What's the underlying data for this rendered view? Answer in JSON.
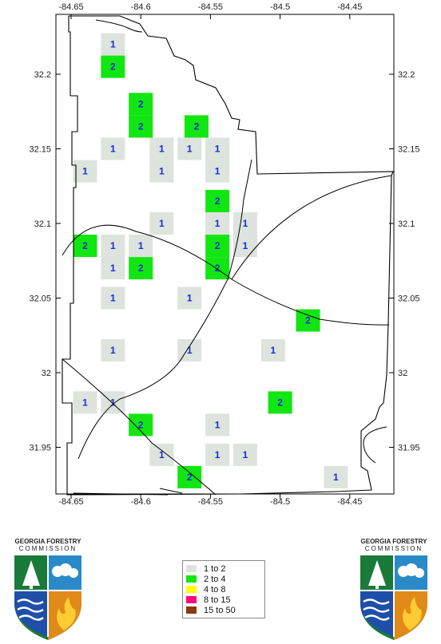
{
  "map": {
    "x_ticks": [
      "-84.65",
      "-84.6",
      "-84.55",
      "-84.5",
      "-84.45"
    ],
    "y_ticks": [
      "32.2",
      "32.15",
      "32.1",
      "32.05",
      "32",
      "31.95"
    ],
    "cell_colors": {
      "1": "#dde3dd",
      "2": "#11e611"
    },
    "cells": [
      {
        "lon": -84.62,
        "lat": 32.22,
        "v": 1
      },
      {
        "lon": -84.62,
        "lat": 32.205,
        "v": 2
      },
      {
        "lon": -84.6,
        "lat": 32.18,
        "v": 2
      },
      {
        "lon": -84.6,
        "lat": 32.165,
        "v": 2
      },
      {
        "lon": -84.56,
        "lat": 32.165,
        "v": 2
      },
      {
        "lon": -84.62,
        "lat": 32.15,
        "v": 1
      },
      {
        "lon": -84.585,
        "lat": 32.15,
        "v": 1
      },
      {
        "lon": -84.565,
        "lat": 32.15,
        "v": 1
      },
      {
        "lon": -84.545,
        "lat": 32.15,
        "v": 1
      },
      {
        "lon": -84.64,
        "lat": 32.135,
        "v": 1
      },
      {
        "lon": -84.585,
        "lat": 32.135,
        "v": 1
      },
      {
        "lon": -84.545,
        "lat": 32.135,
        "v": 1
      },
      {
        "lon": -84.545,
        "lat": 32.115,
        "v": 2
      },
      {
        "lon": -84.585,
        "lat": 32.1,
        "v": 1
      },
      {
        "lon": -84.545,
        "lat": 32.1,
        "v": 1
      },
      {
        "lon": -84.525,
        "lat": 32.1,
        "v": 1
      },
      {
        "lon": -84.64,
        "lat": 32.085,
        "v": 2
      },
      {
        "lon": -84.62,
        "lat": 32.085,
        "v": 1
      },
      {
        "lon": -84.6,
        "lat": 32.085,
        "v": 1
      },
      {
        "lon": -84.545,
        "lat": 32.085,
        "v": 2
      },
      {
        "lon": -84.525,
        "lat": 32.085,
        "v": 1
      },
      {
        "lon": -84.62,
        "lat": 32.07,
        "v": 1
      },
      {
        "lon": -84.6,
        "lat": 32.07,
        "v": 2
      },
      {
        "lon": -84.545,
        "lat": 32.07,
        "v": 2
      },
      {
        "lon": -84.62,
        "lat": 32.05,
        "v": 1
      },
      {
        "lon": -84.565,
        "lat": 32.05,
        "v": 1
      },
      {
        "lon": -84.48,
        "lat": 32.035,
        "v": 2
      },
      {
        "lon": -84.62,
        "lat": 32.015,
        "v": 1
      },
      {
        "lon": -84.565,
        "lat": 32.015,
        "v": 1
      },
      {
        "lon": -84.505,
        "lat": 32.015,
        "v": 1
      },
      {
        "lon": -84.64,
        "lat": 31.98,
        "v": 1
      },
      {
        "lon": -84.62,
        "lat": 31.98,
        "v": 1
      },
      {
        "lon": -84.5,
        "lat": 31.98,
        "v": 2
      },
      {
        "lon": -84.6,
        "lat": 31.965,
        "v": 2
      },
      {
        "lon": -84.545,
        "lat": 31.965,
        "v": 1
      },
      {
        "lon": -84.585,
        "lat": 31.945,
        "v": 1
      },
      {
        "lon": -84.545,
        "lat": 31.945,
        "v": 1
      },
      {
        "lon": -84.525,
        "lat": 31.945,
        "v": 1
      },
      {
        "lon": -84.565,
        "lat": 31.93,
        "v": 2
      },
      {
        "lon": -84.46,
        "lat": 31.93,
        "v": 1
      }
    ]
  },
  "legend": {
    "items": [
      {
        "label": "1 to 2",
        "color": "#dde3dd"
      },
      {
        "label": "2 to 4",
        "color": "#11e611"
      },
      {
        "label": "4 to 8",
        "color": "#ffff00"
      },
      {
        "label": "8 to 15",
        "color": "#ff0a7a"
      },
      {
        "label": "15 to 50",
        "color": "#8b3a0f"
      }
    ]
  },
  "logos": {
    "title": "GEORGIA FORESTRY",
    "subtitle": "COMMISSION"
  }
}
